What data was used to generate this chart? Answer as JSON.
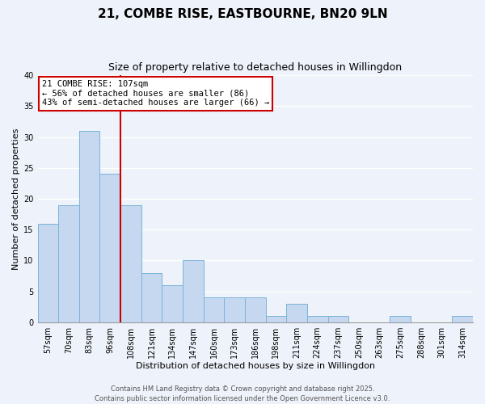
{
  "title": "21, COMBE RISE, EASTBOURNE, BN20 9LN",
  "subtitle": "Size of property relative to detached houses in Willingdon",
  "xlabel": "Distribution of detached houses by size in Willingdon",
  "ylabel": "Number of detached properties",
  "categories": [
    "57sqm",
    "70sqm",
    "83sqm",
    "96sqm",
    "108sqm",
    "121sqm",
    "134sqm",
    "147sqm",
    "160sqm",
    "173sqm",
    "186sqm",
    "198sqm",
    "211sqm",
    "224sqm",
    "237sqm",
    "250sqm",
    "263sqm",
    "275sqm",
    "288sqm",
    "301sqm",
    "314sqm"
  ],
  "values": [
    16,
    19,
    31,
    24,
    19,
    8,
    6,
    10,
    4,
    4,
    4,
    1,
    3,
    1,
    1,
    0,
    0,
    1,
    0,
    0,
    1
  ],
  "bar_color": "#c5d8f0",
  "bar_edge_color": "#7ab4d8",
  "background_color": "#eef2fa",
  "grid_color": "#ffffff",
  "vline_color": "#cc0000",
  "vline_index": 4,
  "annotation_line1": "21 COMBE RISE: 107sqm",
  "annotation_line2": "← 56% of detached houses are smaller (86)",
  "annotation_line3": "43% of semi-detached houses are larger (66) →",
  "annotation_box_edge_color": "#cc0000",
  "annotation_bg_color": "#ffffff",
  "footer_line1": "Contains HM Land Registry data © Crown copyright and database right 2025.",
  "footer_line2": "Contains public sector information licensed under the Open Government Licence v3.0.",
  "ylim": [
    0,
    40
  ],
  "yticks": [
    0,
    5,
    10,
    15,
    20,
    25,
    30,
    35,
    40
  ],
  "title_fontsize": 11,
  "subtitle_fontsize": 9,
  "xlabel_fontsize": 8,
  "ylabel_fontsize": 8,
  "tick_fontsize": 7,
  "annotation_fontsize": 7.5,
  "footer_fontsize": 6
}
